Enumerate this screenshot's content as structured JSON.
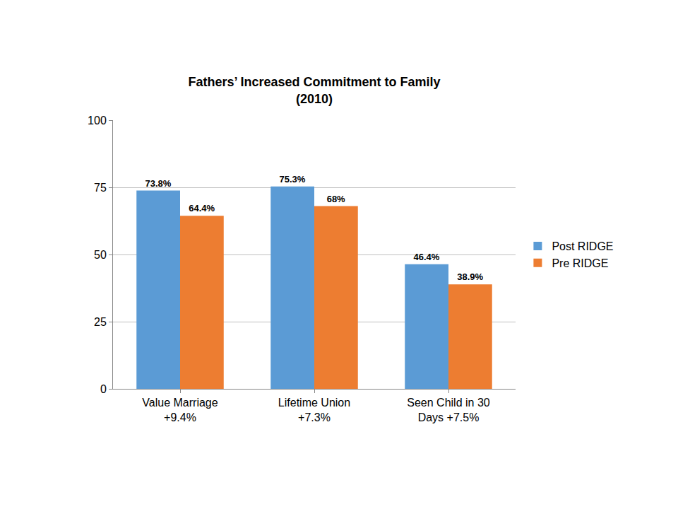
{
  "chart_data": {
    "type": "bar",
    "title": "Fathers’ Increased Commitment to Family\n(2010)",
    "categories": [
      "Value Marriage\n+9.4%",
      "Lifetime Union\n+7.3%",
      "Seen Child in 30\nDays +7.5%"
    ],
    "series": [
      {
        "name": "Post RIDGE",
        "color": "#5B9BD5",
        "values": [
          73.8,
          75.3,
          46.4
        ],
        "value_labels": [
          "73.8%",
          "75.3%",
          "46.4%"
        ]
      },
      {
        "name": "Pre RIDGE",
        "color": "#ED7D31",
        "values": [
          64.4,
          68,
          38.9
        ],
        "value_labels": [
          "64.4%",
          "68%",
          "38.9%"
        ]
      }
    ],
    "ylim": [
      0,
      100
    ],
    "yticks": [
      0,
      25,
      50,
      75,
      100
    ],
    "grid": true,
    "legend": "right",
    "data_labels": true
  }
}
